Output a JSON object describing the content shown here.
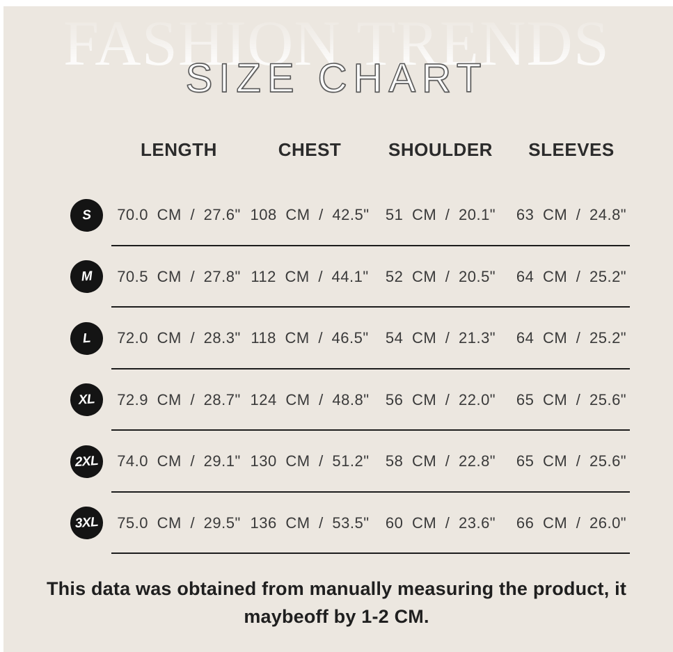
{
  "header": {
    "brand_watermark": "FASHION TRENDS",
    "title": "SIZE CHART"
  },
  "chart_data": {
    "type": "table",
    "title": "SIZE CHART",
    "columns": [
      "LENGTH",
      "CHEST",
      "SHOULDER",
      "SLEEVES"
    ],
    "rows": [
      {
        "size": "S",
        "length": "70.0 CM / 27.6\"",
        "chest": "108 CM / 42.5\"",
        "shoulder": "51 CM / 20.1\"",
        "sleeves": "63 CM / 24.8\""
      },
      {
        "size": "M",
        "length": "70.5 CM / 27.8\"",
        "chest": "112 CM / 44.1\"",
        "shoulder": "52 CM / 20.5\"",
        "sleeves": "64 CM / 25.2\""
      },
      {
        "size": "L",
        "length": "72.0 CM / 28.3\"",
        "chest": "118 CM / 46.5\"",
        "shoulder": "54 CM / 21.3\"",
        "sleeves": "64 CM / 25.2\""
      },
      {
        "size": "XL",
        "length": "72.9 CM / 28.7\"",
        "chest": "124 CM / 48.8\"",
        "shoulder": "56 CM / 22.0\"",
        "sleeves": "65 CM / 25.6\""
      },
      {
        "size": "2XL",
        "length": "74.0 CM / 29.1\"",
        "chest": "130 CM / 51.2\"",
        "shoulder": "58 CM / 22.8\"",
        "sleeves": "65 CM / 25.6\""
      },
      {
        "size": "3XL",
        "length": "75.0 CM / 29.5\"",
        "chest": "136 CM / 53.5\"",
        "shoulder": "60 CM / 23.6\"",
        "sleeves": "66 CM / 26.0\""
      }
    ]
  },
  "footer": {
    "line1": "This data was obtained from manually measuring the product, it",
    "line2": "maybeoff by 1-2 CM."
  },
  "colors": {
    "background": "#ECE7E0",
    "text_dark": "#2B2B2B",
    "value_text": "#3A3A3A",
    "badge_background": "#141414",
    "badge_text": "#FFFFFF",
    "divider": "#1C1C1C",
    "title_fill": "#FCFCFC",
    "title_outline": "#555555"
  }
}
